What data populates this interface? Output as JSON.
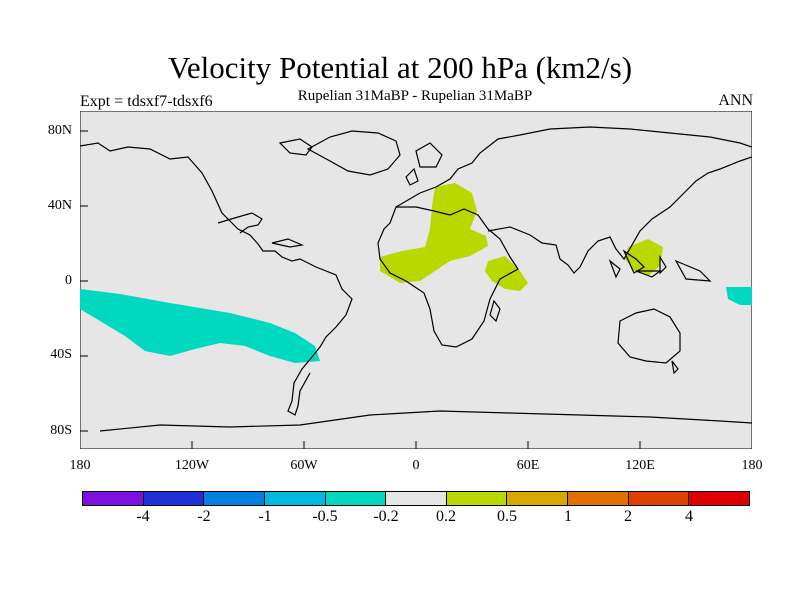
{
  "title": "Velocity Potential at 200 hPa (km2/s)",
  "subtitle": "Rupelian  31MaBP - Rupelian  31MaBP",
  "experiment": "Expt = tdsxf7-tdsxf6",
  "season": "ANN",
  "colors": {
    "land_background": "#e6e6e6",
    "positive_shade": "#b8d800",
    "negative_shade": "#00d8c0"
  },
  "axes": {
    "y_ticks": [
      "80N",
      "40N",
      "0",
      "40S",
      "80S"
    ],
    "x_ticks": [
      "180",
      "120W",
      "60W",
      "0",
      "60E",
      "120E",
      "180"
    ]
  },
  "colorbar": {
    "colors": [
      "#7b10e0",
      "#2030d8",
      "#0080e0",
      "#00b8e0",
      "#00d8c0",
      "#e6e6e6",
      "#b8d800",
      "#d8a800",
      "#e07000",
      "#e04000",
      "#e00000"
    ],
    "labels": [
      "-4",
      "-2",
      "-1",
      "-0.5",
      "-0.2",
      "0.2",
      "0.5",
      "1",
      "2",
      "4"
    ]
  },
  "regions": {
    "africa_positive": "positive anomaly over N Africa / Mediterranean",
    "indian_ocean_positive": "positive anomaly over W Indian Ocean",
    "maritime_positive": "positive anomaly over Maritime Continent",
    "pacific_negative": "negative anomaly over S Pacific"
  }
}
